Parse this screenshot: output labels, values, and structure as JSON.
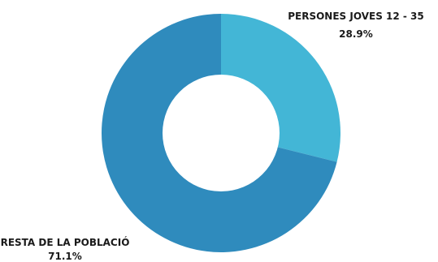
{
  "chart_data": {
    "type": "pie",
    "variant": "donut",
    "title": "",
    "categories": [
      "PERSONES JOVES 12 - 35",
      "RESTA DE LA POBLACIÓ"
    ],
    "values": [
      28.9,
      71.1
    ],
    "value_labels": [
      "28.9%",
      "71.1%"
    ],
    "colors": [
      "#43b6d6",
      "#2f8bbd"
    ],
    "legend": "none"
  }
}
